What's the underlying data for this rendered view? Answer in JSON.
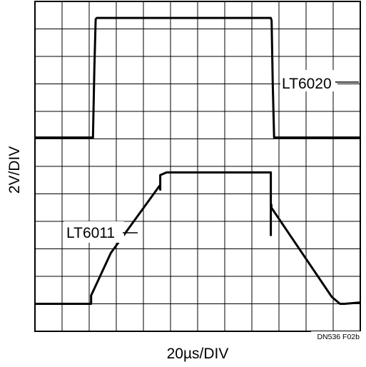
{
  "chart_data": {
    "type": "line",
    "title": "",
    "xlabel": "20µs/DIV",
    "ylabel": "2V/DIV",
    "figure_code": "DN536 F02b",
    "x_unit_per_div_us": 20,
    "y_unit_per_div_V": 2,
    "grid": true,
    "x_divisions": 12,
    "y_divisions": 12,
    "xlim": [
      0,
      12
    ],
    "ylim": [
      0,
      12
    ],
    "series": [
      {
        "name": "LT6020",
        "color": "#000000",
        "x": [
          0,
          2.14,
          2.19,
          2.24,
          2.28,
          8.7,
          8.73,
          8.77,
          8.82,
          12
        ],
        "y": [
          7.05,
          7.05,
          9.5,
          11.35,
          11.4,
          11.4,
          11.3,
          9.0,
          7.05,
          7.05
        ]
      },
      {
        "name": "LT6011",
        "color": "#000000",
        "x": [
          0,
          2.05,
          2.07,
          2.07,
          2.8,
          4.6,
          4.62,
          4.62,
          4.85,
          5.0,
          8.7,
          8.7,
          8.7,
          8.72,
          8.72,
          10.95,
          11.25,
          11.42,
          12
        ],
        "y": [
          1.0,
          1.0,
          1.0,
          1.3,
          2.85,
          5.3,
          5.15,
          5.68,
          5.78,
          5.78,
          5.78,
          3.5,
          4.6,
          4.6,
          4.5,
          1.25,
          1.0,
          1.0,
          1.05
        ]
      }
    ],
    "annotations": [
      "LT6020",
      "LT6011"
    ]
  }
}
